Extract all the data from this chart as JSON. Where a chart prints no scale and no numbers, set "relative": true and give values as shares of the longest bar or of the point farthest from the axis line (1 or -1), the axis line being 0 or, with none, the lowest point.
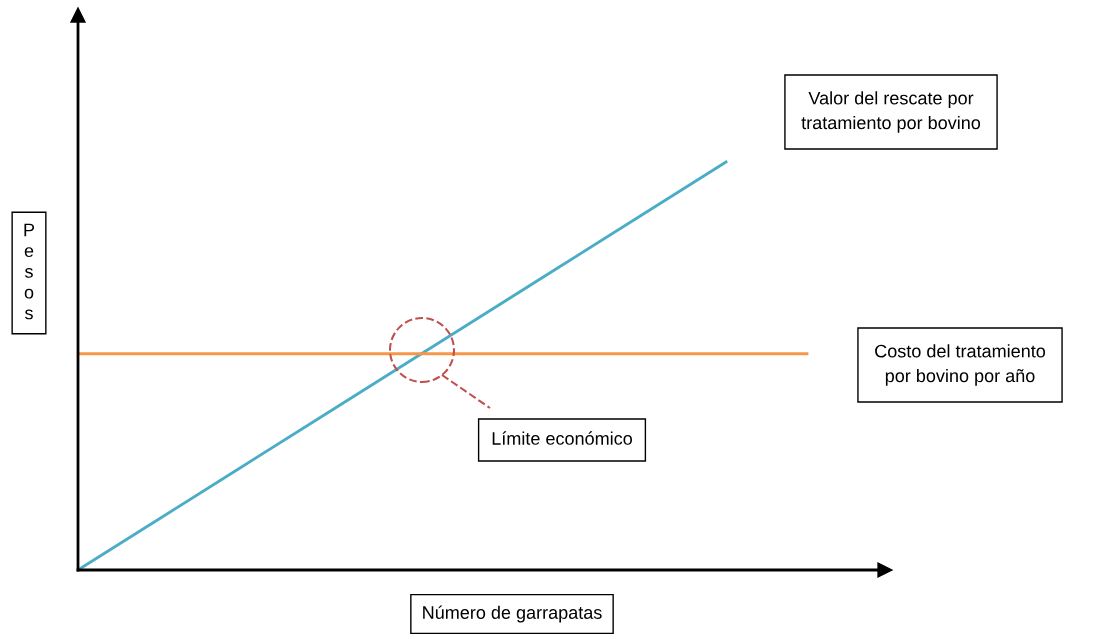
{
  "chart_data": {
    "type": "line",
    "relative": true,
    "xlabel": "Número de garrapatas",
    "ylabel": "Pesos",
    "categories": [
      null,
      null,
      null,
      null,
      null,
      null,
      null,
      null,
      null,
      null
    ],
    "series": [
      {
        "name": "Valor del rescate por\ntratamiento por bovino",
        "color": "#4bacc6",
        "values": [
          0,
          0.125,
          0.25,
          0.375,
          0.5,
          0.625,
          0.75,
          0.875,
          1,
          null
        ]
      },
      {
        "name": "Costo del tratamiento\npor bovino por año",
        "color": "#f79646",
        "values": [
          0.53,
          0.53,
          0.53,
          0.53,
          0.53,
          0.53,
          0.53,
          0.53,
          0.53,
          0.53
        ]
      }
    ],
    "annotations": [
      "Límite económico"
    ],
    "grid": false,
    "legend": false,
    "marker": "none",
    "line_style": "solid"
  }
}
